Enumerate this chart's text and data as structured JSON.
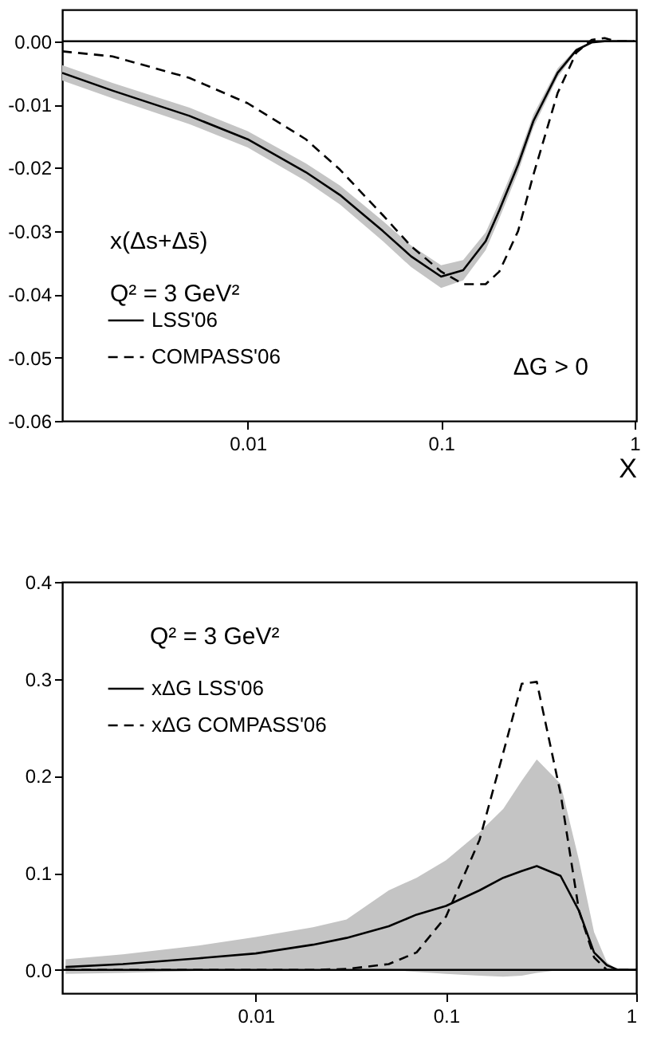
{
  "chart_data": [
    {
      "type": "line",
      "xlabel": "X",
      "log": "x",
      "xlim": [
        0.0011,
        1.02
      ],
      "xticks": [
        0.01,
        0.1,
        1
      ],
      "ylim": [
        -0.06,
        0.005
      ],
      "yticks": [
        {
          "value": -0.06,
          "label": "-0.06"
        },
        {
          "value": -0.05,
          "label": "-0.05"
        },
        {
          "value": -0.04,
          "label": "-0.04"
        },
        {
          "value": -0.03,
          "label": "-0.03"
        },
        {
          "value": -0.02,
          "label": "-0.02"
        },
        {
          "value": -0.01,
          "label": "-0.01"
        },
        {
          "value": 0,
          "label": "0.00"
        }
      ],
      "grid": false,
      "legend": "bottom left",
      "x": [
        0.0011,
        0.002,
        0.005,
        0.01,
        0.02,
        0.03,
        0.05,
        0.07,
        0.1,
        0.13,
        0.17,
        0.2,
        0.25,
        0.3,
        0.4,
        0.5,
        0.6,
        0.7,
        0.8,
        1.0
      ],
      "series": [
        {
          "name": "LSS'06",
          "color": "#000000",
          "line_style": "solid",
          "values": [
            -0.005,
            -0.0078,
            -0.0118,
            -0.0155,
            -0.0207,
            -0.0243,
            -0.03,
            -0.034,
            -0.0372,
            -0.0362,
            -0.0316,
            -0.0267,
            -0.0195,
            -0.0126,
            -0.005,
            -0.0014,
            -0.0002,
            0,
            0,
            0
          ],
          "lower": [
            -0.0062,
            -0.009,
            -0.0131,
            -0.0168,
            -0.0221,
            -0.0258,
            -0.0316,
            -0.0357,
            -0.039,
            -0.0378,
            -0.033,
            -0.028,
            -0.0207,
            -0.0136,
            -0.0057,
            -0.0017,
            -0.0003,
            0,
            0,
            0
          ],
          "upper": [
            -0.0038,
            -0.0066,
            -0.0105,
            -0.0142,
            -0.0193,
            -0.0228,
            -0.0284,
            -0.0323,
            -0.0354,
            -0.0346,
            -0.0302,
            -0.0254,
            -0.0183,
            -0.0116,
            -0.0043,
            -0.0011,
            -0.0001,
            0,
            0,
            0
          ]
        },
        {
          "name": "COMPASS'06",
          "color": "#000000",
          "line_style": "dashed",
          "values": [
            -0.0016,
            -0.0024,
            -0.0058,
            -0.0098,
            -0.0155,
            -0.0203,
            -0.0275,
            -0.0324,
            -0.0364,
            -0.0384,
            -0.0384,
            -0.0364,
            -0.03,
            -0.0211,
            -0.0082,
            -0.0018,
            0.0002,
            0.0005,
            0,
            0
          ]
        }
      ],
      "ref_lines": [
        {
          "axis": "y",
          "value": 0
        }
      ],
      "annotations": [
        "x(Δs+Δs̄)",
        "Q² = 3 GeV²",
        "ΔG > 0"
      ]
    },
    {
      "type": "line",
      "log": "x",
      "xlim": [
        0.00096,
        1
      ],
      "xticks": [
        0.01,
        0.1,
        1
      ],
      "ylim": [
        -0.024,
        0.4
      ],
      "yticks": [
        {
          "value": 0,
          "label": "0.0"
        },
        0.1,
        0.2,
        0.3,
        0.4
      ],
      "grid": false,
      "legend": "top left",
      "x": [
        0.001,
        0.002,
        0.005,
        0.01,
        0.02,
        0.03,
        0.05,
        0.07,
        0.1,
        0.15,
        0.2,
        0.25,
        0.3,
        0.4,
        0.5,
        0.6,
        0.7,
        0.8,
        1.0
      ],
      "series": [
        {
          "name": "xΔG  LSS'06",
          "color": "#000000",
          "line_style": "solid",
          "values": [
            0.003,
            0.006,
            0.012,
            0.017,
            0.026,
            0.033,
            0.045,
            0.057,
            0.066,
            0.082,
            0.095,
            0.102,
            0.107,
            0.097,
            0.061,
            0.018,
            0.005,
            0,
            0
          ],
          "lower": [
            -0.004,
            -0.003,
            -0.001,
            0,
            0.001,
            0.001,
            0,
            -0.002,
            -0.004,
            -0.006,
            -0.007,
            -0.006,
            -0.003,
            0,
            0,
            0,
            0,
            0,
            0
          ],
          "upper": [
            0.011,
            0.016,
            0.025,
            0.034,
            0.044,
            0.052,
            0.082,
            0.095,
            0.113,
            0.142,
            0.166,
            0.195,
            0.217,
            0.192,
            0.113,
            0.039,
            0.008,
            0,
            0
          ]
        },
        {
          "name": "xΔG  COMPASS'06",
          "color": "#000000",
          "line_style": "dashed",
          "values": [
            0,
            0,
            0,
            0,
            0,
            0.001,
            0.006,
            0.018,
            0.055,
            0.134,
            0.224,
            0.295,
            0.297,
            0.182,
            0.061,
            0.013,
            0,
            0,
            0
          ]
        }
      ],
      "ref_lines": [
        {
          "axis": "y",
          "value": 0
        }
      ],
      "annotations": [
        "Q² = 3 GeV²"
      ]
    }
  ]
}
